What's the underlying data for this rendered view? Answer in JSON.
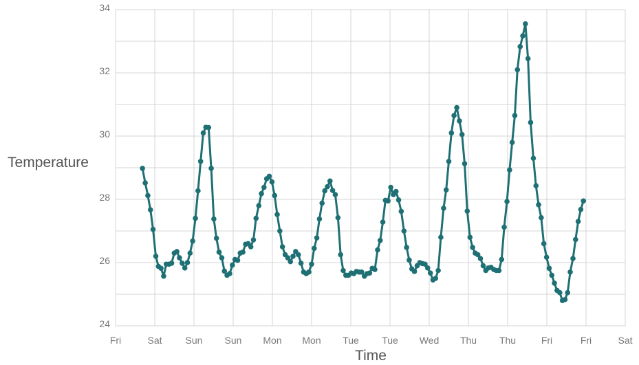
{
  "chart_data": {
    "type": "line",
    "xlabel": "Time",
    "ylabel": "Temperature",
    "x_range": [
      0,
      39
    ],
    "ylim": [
      24,
      34
    ],
    "y_ticks": [
      24,
      26,
      28,
      30,
      32,
      34
    ],
    "x_ticks": [
      {
        "x": 0,
        "label": "Fri"
      },
      {
        "x": 3,
        "label": "Sat"
      },
      {
        "x": 6,
        "label": "Sun"
      },
      {
        "x": 9,
        "label": "Sun"
      },
      {
        "x": 12,
        "label": "Mon"
      },
      {
        "x": 15,
        "label": "Mon"
      },
      {
        "x": 18,
        "label": "Tue"
      },
      {
        "x": 21,
        "label": "Tue"
      },
      {
        "x": 24,
        "label": "Wed"
      },
      {
        "x": 27,
        "label": "Thu"
      },
      {
        "x": 30,
        "label": "Thu"
      },
      {
        "x": 33,
        "label": "Fri"
      },
      {
        "x": 36,
        "label": "Fri"
      },
      {
        "x": 39,
        "label": "Sat"
      }
    ],
    "grid": true,
    "color": "#1f7075",
    "series": [
      {
        "points": [
          [
            2.06,
            28.98
          ],
          [
            2.27,
            28.52
          ],
          [
            2.47,
            28.12
          ],
          [
            2.67,
            27.67
          ],
          [
            2.87,
            27.05
          ],
          [
            3.08,
            26.2
          ],
          [
            3.28,
            25.88
          ],
          [
            3.48,
            25.82
          ],
          [
            3.68,
            25.57
          ],
          [
            3.88,
            25.95
          ],
          [
            4.09,
            25.95
          ],
          [
            4.29,
            25.98
          ],
          [
            4.49,
            26.3
          ],
          [
            4.69,
            26.35
          ],
          [
            4.89,
            26.15
          ],
          [
            5.1,
            25.98
          ],
          [
            5.3,
            25.83
          ],
          [
            5.5,
            26.0
          ],
          [
            5.7,
            26.3
          ],
          [
            5.9,
            26.68
          ],
          [
            6.11,
            27.4
          ],
          [
            6.31,
            28.27
          ],
          [
            6.51,
            29.2
          ],
          [
            6.71,
            30.1
          ],
          [
            6.91,
            30.28
          ],
          [
            7.12,
            30.27
          ],
          [
            7.32,
            28.98
          ],
          [
            7.52,
            27.38
          ],
          [
            7.72,
            26.77
          ],
          [
            7.92,
            26.33
          ],
          [
            8.13,
            26.15
          ],
          [
            8.33,
            25.73
          ],
          [
            8.53,
            25.6
          ],
          [
            8.73,
            25.65
          ],
          [
            8.94,
            25.92
          ],
          [
            9.14,
            26.1
          ],
          [
            9.34,
            26.07
          ],
          [
            9.54,
            26.3
          ],
          [
            9.74,
            26.33
          ],
          [
            9.95,
            26.58
          ],
          [
            10.15,
            26.6
          ],
          [
            10.35,
            26.5
          ],
          [
            10.55,
            26.72
          ],
          [
            10.75,
            27.4
          ],
          [
            10.96,
            27.8
          ],
          [
            11.16,
            28.18
          ],
          [
            11.36,
            28.38
          ],
          [
            11.56,
            28.65
          ],
          [
            11.76,
            28.73
          ],
          [
            11.97,
            28.55
          ],
          [
            12.17,
            28.12
          ],
          [
            12.37,
            27.52
          ],
          [
            12.57,
            27.0
          ],
          [
            12.77,
            26.5
          ],
          [
            12.98,
            26.25
          ],
          [
            13.18,
            26.15
          ],
          [
            13.38,
            26.03
          ],
          [
            13.58,
            26.2
          ],
          [
            13.78,
            26.35
          ],
          [
            13.99,
            26.25
          ],
          [
            14.19,
            25.98
          ],
          [
            14.39,
            25.7
          ],
          [
            14.59,
            25.65
          ],
          [
            14.79,
            25.7
          ],
          [
            15.0,
            25.95
          ],
          [
            15.2,
            26.45
          ],
          [
            15.4,
            26.78
          ],
          [
            15.6,
            27.38
          ],
          [
            15.8,
            27.88
          ],
          [
            16.01,
            28.27
          ],
          [
            16.21,
            28.4
          ],
          [
            16.41,
            28.58
          ],
          [
            16.61,
            28.28
          ],
          [
            16.81,
            28.15
          ],
          [
            17.02,
            27.42
          ],
          [
            17.22,
            26.25
          ],
          [
            17.42,
            25.75
          ],
          [
            17.62,
            25.6
          ],
          [
            17.82,
            25.6
          ],
          [
            18.03,
            25.67
          ],
          [
            18.23,
            25.65
          ],
          [
            18.43,
            25.72
          ],
          [
            18.63,
            25.7
          ],
          [
            18.83,
            25.7
          ],
          [
            19.04,
            25.57
          ],
          [
            19.24,
            25.65
          ],
          [
            19.44,
            25.67
          ],
          [
            19.64,
            25.82
          ],
          [
            19.84,
            25.78
          ],
          [
            20.05,
            26.4
          ],
          [
            20.25,
            26.7
          ],
          [
            20.45,
            27.28
          ],
          [
            20.65,
            27.97
          ],
          [
            20.85,
            27.95
          ],
          [
            21.06,
            28.38
          ],
          [
            21.26,
            28.15
          ],
          [
            21.46,
            28.25
          ],
          [
            21.66,
            27.98
          ],
          [
            21.86,
            27.62
          ],
          [
            22.07,
            27.0
          ],
          [
            22.27,
            26.48
          ],
          [
            22.47,
            26.08
          ],
          [
            22.67,
            25.8
          ],
          [
            22.87,
            25.72
          ],
          [
            23.08,
            25.9
          ],
          [
            23.28,
            26.0
          ],
          [
            23.48,
            25.97
          ],
          [
            23.68,
            25.95
          ],
          [
            23.88,
            25.83
          ],
          [
            24.09,
            25.67
          ],
          [
            24.29,
            25.45
          ],
          [
            24.49,
            25.5
          ],
          [
            24.69,
            25.75
          ],
          [
            24.89,
            26.8
          ],
          [
            25.1,
            27.72
          ],
          [
            25.3,
            28.3
          ],
          [
            25.5,
            29.2
          ],
          [
            25.7,
            30.1
          ],
          [
            25.9,
            30.65
          ],
          [
            26.11,
            30.9
          ],
          [
            26.31,
            30.48
          ],
          [
            26.51,
            30.05
          ],
          [
            26.71,
            29.13
          ],
          [
            26.91,
            27.63
          ],
          [
            27.12,
            26.8
          ],
          [
            27.32,
            26.48
          ],
          [
            27.52,
            26.3
          ],
          [
            27.72,
            26.25
          ],
          [
            27.92,
            26.13
          ],
          [
            28.13,
            25.9
          ],
          [
            28.33,
            25.75
          ],
          [
            28.53,
            25.83
          ],
          [
            28.73,
            25.85
          ],
          [
            28.94,
            25.78
          ],
          [
            29.14,
            25.75
          ],
          [
            29.34,
            25.75
          ],
          [
            29.54,
            26.1
          ],
          [
            29.74,
            27.12
          ],
          [
            29.95,
            27.93
          ],
          [
            30.15,
            28.93
          ],
          [
            30.35,
            29.8
          ],
          [
            30.55,
            30.65
          ],
          [
            30.75,
            32.1
          ],
          [
            30.96,
            32.83
          ],
          [
            31.16,
            33.17
          ],
          [
            31.36,
            33.55
          ],
          [
            31.56,
            32.45
          ],
          [
            31.76,
            30.43
          ],
          [
            31.97,
            29.3
          ],
          [
            32.17,
            28.43
          ],
          [
            32.37,
            27.83
          ],
          [
            32.57,
            27.42
          ],
          [
            32.77,
            26.6
          ],
          [
            32.98,
            26.17
          ],
          [
            33.18,
            25.82
          ],
          [
            33.38,
            25.6
          ],
          [
            33.58,
            25.35
          ],
          [
            33.78,
            25.12
          ],
          [
            33.99,
            25.05
          ],
          [
            34.19,
            24.8
          ],
          [
            34.39,
            24.83
          ],
          [
            34.59,
            25.05
          ],
          [
            34.79,
            25.7
          ],
          [
            35.0,
            26.13
          ],
          [
            35.2,
            26.73
          ],
          [
            35.4,
            27.3
          ],
          [
            35.6,
            27.68
          ],
          [
            35.8,
            27.95
          ]
        ]
      }
    ]
  }
}
